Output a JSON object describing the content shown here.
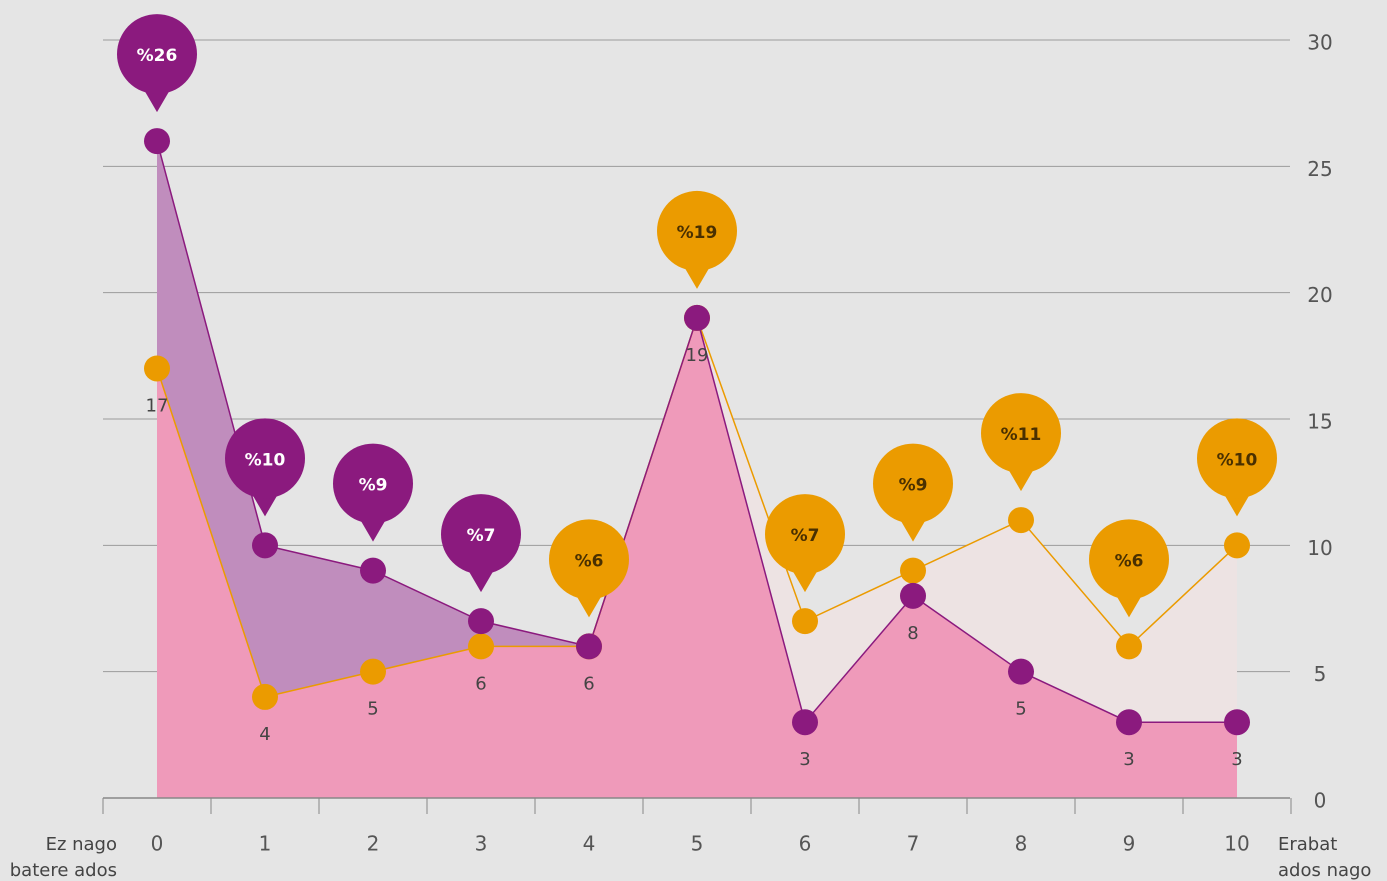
{
  "chart_data": {
    "type": "line",
    "categories": [
      "0",
      "1",
      "2",
      "3",
      "4",
      "5",
      "6",
      "7",
      "8",
      "9",
      "10"
    ],
    "series": [
      {
        "color": "#8b1a7e",
        "values": [
          26,
          10,
          9,
          7,
          6,
          19,
          3,
          8,
          5,
          3,
          3
        ],
        "value_labels": [
          "%26",
          "%10",
          "%9",
          "%7",
          "6",
          "19",
          "3",
          "8",
          "5",
          "3",
          "3"
        ]
      },
      {
        "color": "#eb9b00",
        "values": [
          17,
          4,
          5,
          6,
          6,
          19,
          7,
          9,
          11,
          6,
          10
        ],
        "value_labels": [
          "17",
          "4",
          "5",
          "6",
          "%6",
          "%19",
          "%7",
          "%9",
          "%11",
          "%6",
          "%10"
        ]
      }
    ],
    "axis_end_labels": [
      [
        "Ez nago",
        "batere ados"
      ],
      [
        "Erabat",
        "ados nago"
      ]
    ],
    "ylim": [
      0,
      30
    ],
    "yticks": [
      0,
      5,
      10,
      15,
      20,
      25,
      30
    ],
    "grid": true
  }
}
